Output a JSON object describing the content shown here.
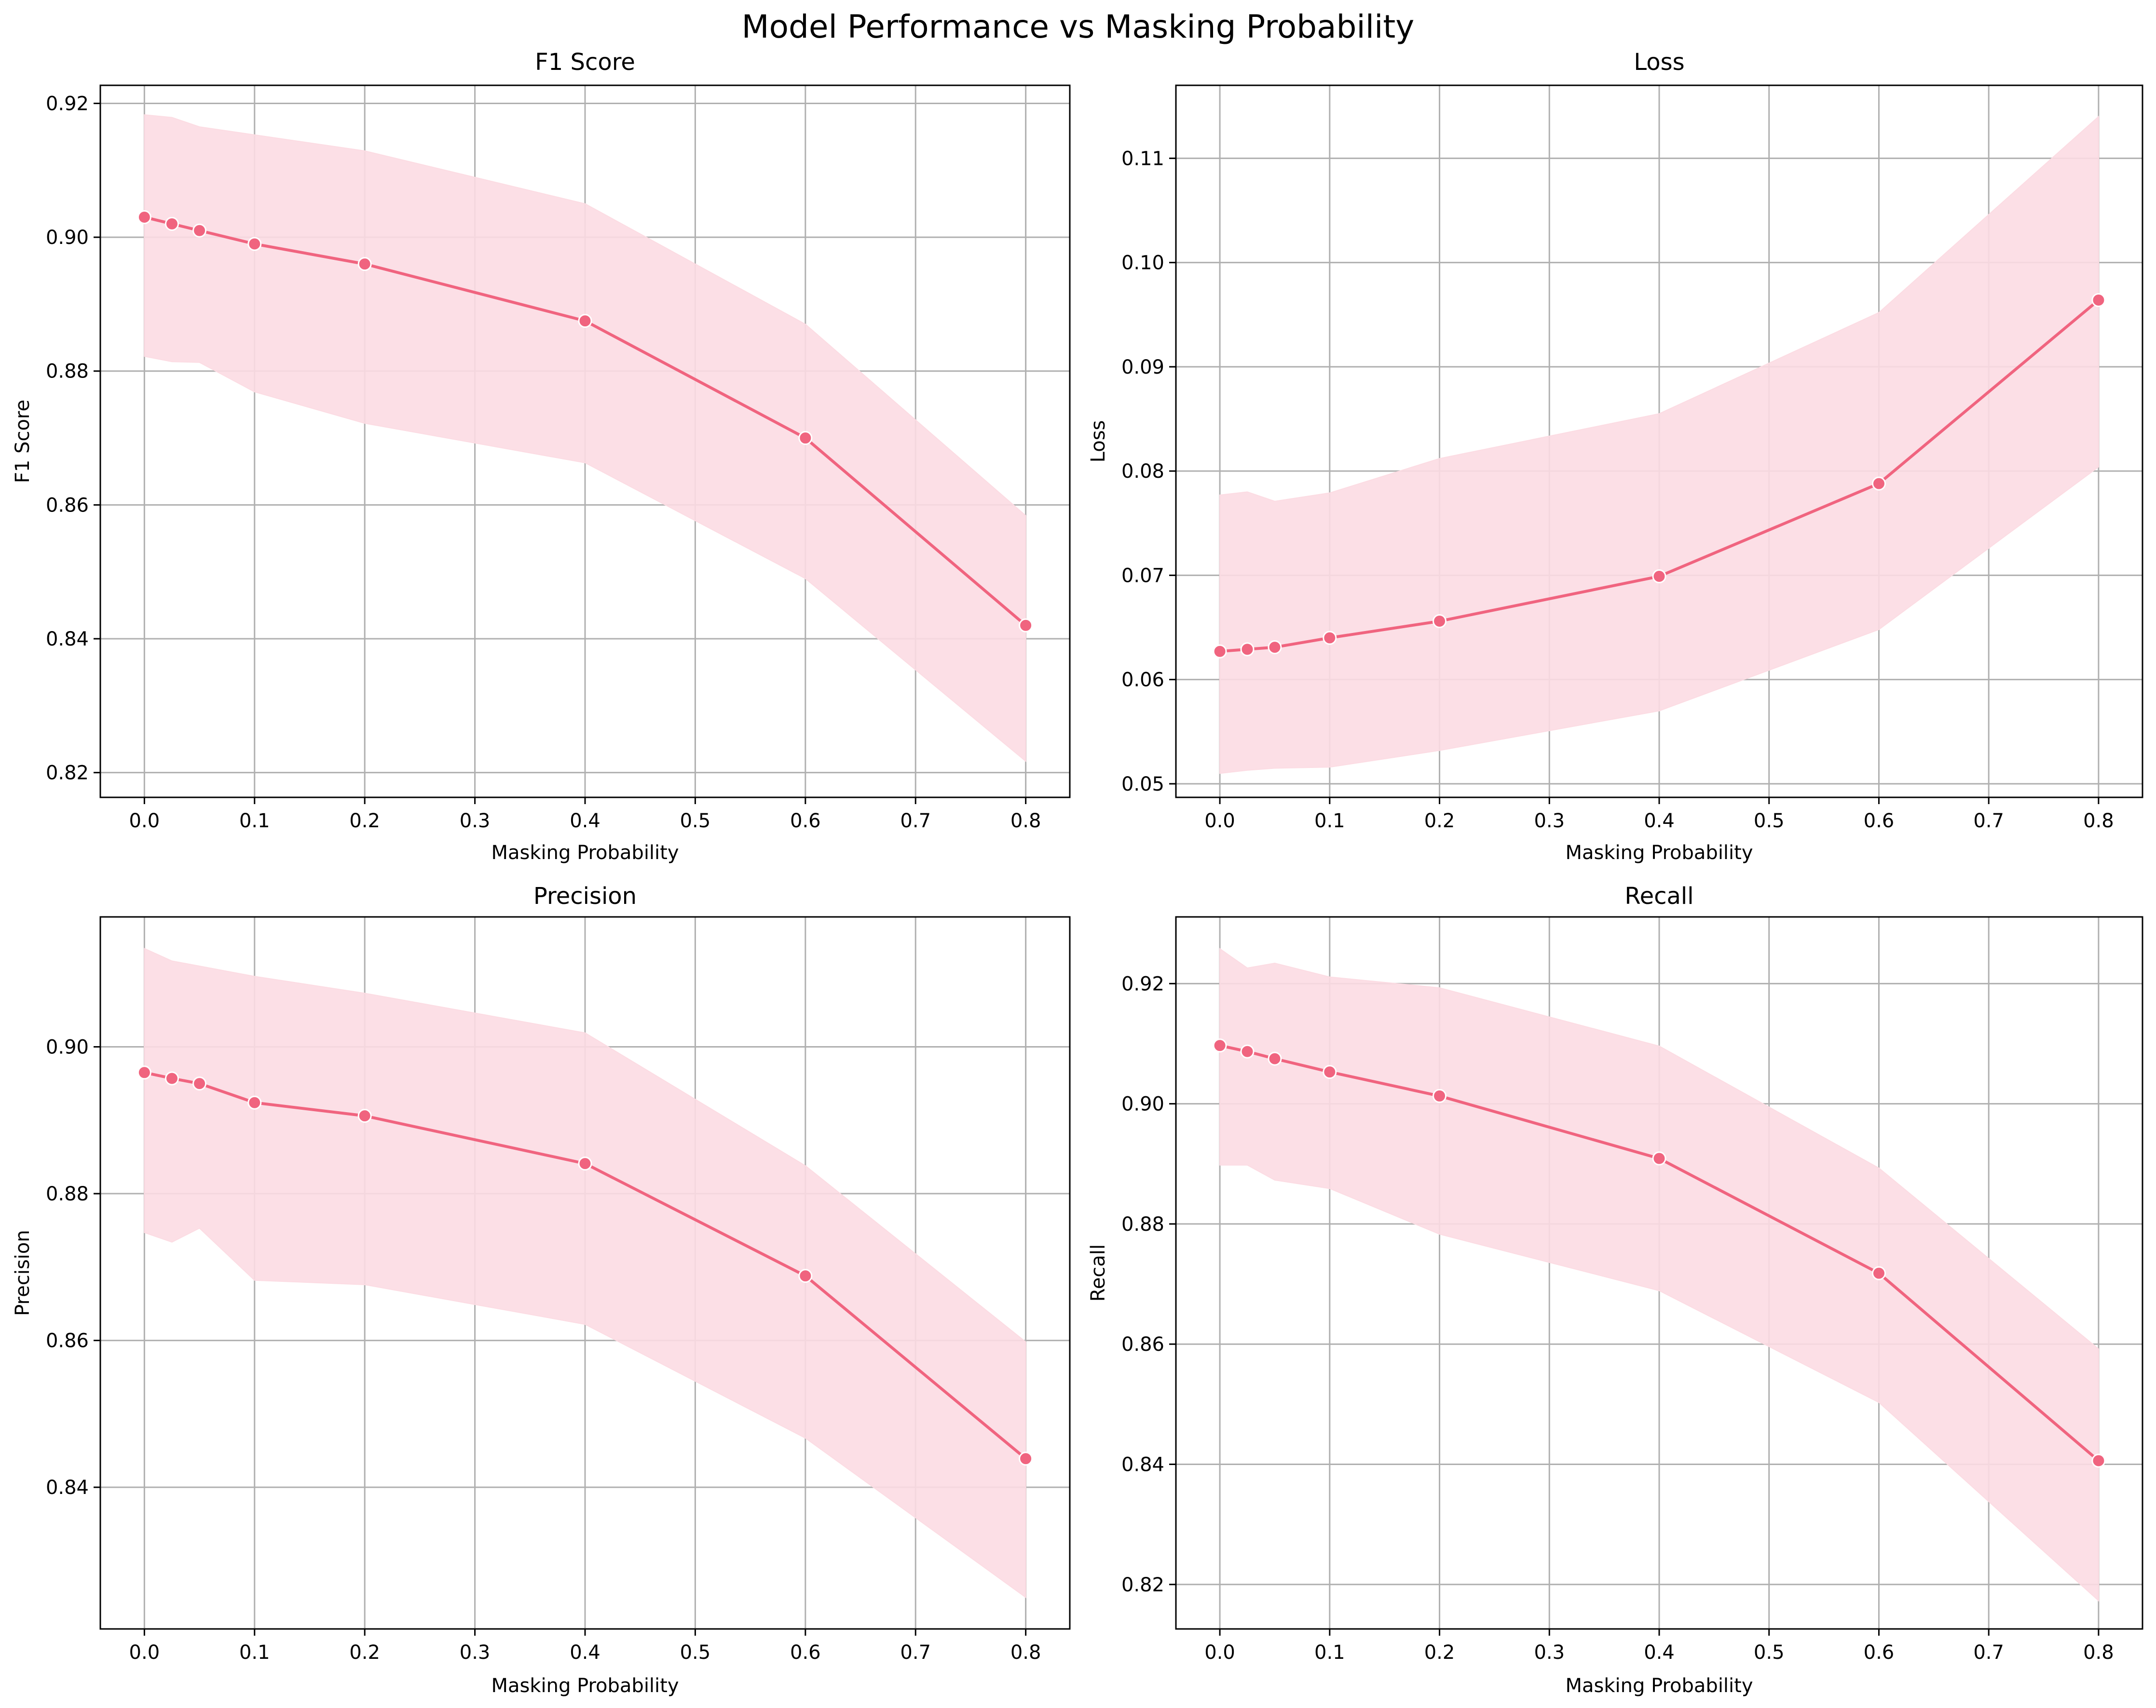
{
  "figure": {
    "title": "Model Performance vs Masking Probability",
    "line_color": "#f0647f",
    "band_color": "#fcdce3"
  },
  "chart_data": [
    {
      "type": "line",
      "title": "F1 Score",
      "xlabel": "Masking Probability",
      "ylabel": "F1 Score",
      "xlim": [
        -0.04,
        0.84
      ],
      "ylim": [
        0.8163,
        0.9227
      ],
      "grid": true,
      "xticks": [
        0.0,
        0.1,
        0.2,
        0.3,
        0.4,
        0.5,
        0.6,
        0.7,
        0.8
      ],
      "xtick_labels": [
        "0.0",
        "0.1",
        "0.2",
        "0.3",
        "0.4",
        "0.5",
        "0.6",
        "0.7",
        "0.8"
      ],
      "yticks": [
        0.82,
        0.84,
        0.86,
        0.88,
        0.9,
        0.92
      ],
      "ytick_labels": [
        "0.82",
        "0.84",
        "0.86",
        "0.88",
        "0.90",
        "0.92"
      ],
      "series": [
        {
          "x": [
            0.0,
            0.025,
            0.05,
            0.1,
            0.2,
            0.4,
            0.6,
            0.8
          ],
          "y": [
            0.903,
            0.902,
            0.901,
            0.899,
            0.896,
            0.8875,
            0.87,
            0.842
          ],
          "ci_upper": [
            0.9183,
            0.9179,
            0.9165,
            0.9153,
            0.9129,
            0.905,
            0.887,
            0.8584
          ],
          "ci_lower": [
            0.8822,
            0.8814,
            0.8813,
            0.8769,
            0.8722,
            0.8663,
            0.849,
            0.8217
          ]
        }
      ]
    },
    {
      "type": "line",
      "title": "Loss",
      "xlabel": "Masking Probability",
      "ylabel": "Loss",
      "xlim": [
        -0.04,
        0.84
      ],
      "ylim": [
        0.0487,
        0.117
      ],
      "grid": true,
      "xticks": [
        0.0,
        0.1,
        0.2,
        0.3,
        0.4,
        0.5,
        0.6,
        0.7,
        0.8
      ],
      "xtick_labels": [
        "0.0",
        "0.1",
        "0.2",
        "0.3",
        "0.4",
        "0.5",
        "0.6",
        "0.7",
        "0.8"
      ],
      "yticks": [
        0.05,
        0.06,
        0.07,
        0.08,
        0.09,
        0.1,
        0.11
      ],
      "ytick_labels": [
        "0.05",
        "0.06",
        "0.07",
        "0.08",
        "0.09",
        "0.10",
        "0.11"
      ],
      "series": [
        {
          "x": [
            0.0,
            0.025,
            0.05,
            0.1,
            0.2,
            0.4,
            0.6,
            0.8
          ],
          "y": [
            0.0627,
            0.0629,
            0.0631,
            0.064,
            0.0656,
            0.0699,
            0.0788,
            0.0964
          ],
          "ci_upper": [
            0.0777,
            0.078,
            0.0771,
            0.0779,
            0.0812,
            0.0855,
            0.0952,
            0.114
          ],
          "ci_lower": [
            0.051,
            0.0513,
            0.0515,
            0.0516,
            0.0532,
            0.057,
            0.0648,
            0.0804
          ]
        }
      ]
    },
    {
      "type": "line",
      "title": "Precision",
      "xlabel": "Masking Probability",
      "ylabel": "Precision",
      "xlim": [
        -0.04,
        0.84
      ],
      "ylim": [
        0.8207,
        0.9177
      ],
      "grid": true,
      "xticks": [
        0.0,
        0.1,
        0.2,
        0.3,
        0.4,
        0.5,
        0.6,
        0.7,
        0.8
      ],
      "xtick_labels": [
        "0.0",
        "0.1",
        "0.2",
        "0.3",
        "0.4",
        "0.5",
        "0.6",
        "0.7",
        "0.8"
      ],
      "yticks": [
        0.84,
        0.86,
        0.88,
        0.9
      ],
      "ytick_labels": [
        "0.84",
        "0.86",
        "0.88",
        "0.90"
      ],
      "series": [
        {
          "x": [
            0.0,
            0.025,
            0.05,
            0.1,
            0.2,
            0.4,
            0.6,
            0.8
          ],
          "y": [
            0.8965,
            0.8957,
            0.895,
            0.8924,
            0.8906,
            0.8841,
            0.8688,
            0.8439
          ],
          "ci_upper": [
            0.9134,
            0.9117,
            0.911,
            0.9096,
            0.9073,
            0.9019,
            0.8838,
            0.8598
          ],
          "ci_lower": [
            0.8747,
            0.8734,
            0.8753,
            0.8682,
            0.8676,
            0.8622,
            0.8467,
            0.825
          ]
        }
      ]
    },
    {
      "type": "line",
      "title": "Recall",
      "xlabel": "Masking Probability",
      "ylabel": "Recall",
      "xlim": [
        -0.04,
        0.84
      ],
      "ylim": [
        0.8126,
        0.9311
      ],
      "grid": true,
      "xticks": [
        0.0,
        0.1,
        0.2,
        0.3,
        0.4,
        0.5,
        0.6,
        0.7,
        0.8
      ],
      "xtick_labels": [
        "0.0",
        "0.1",
        "0.2",
        "0.3",
        "0.4",
        "0.5",
        "0.6",
        "0.7",
        "0.8"
      ],
      "yticks": [
        0.82,
        0.84,
        0.86,
        0.88,
        0.9,
        0.92
      ],
      "ytick_labels": [
        "0.82",
        "0.84",
        "0.86",
        "0.88",
        "0.90",
        "0.92"
      ],
      "series": [
        {
          "x": [
            0.0,
            0.025,
            0.05,
            0.1,
            0.2,
            0.4,
            0.6,
            0.8
          ],
          "y": [
            0.9097,
            0.9087,
            0.9075,
            0.9053,
            0.9013,
            0.8909,
            0.8718,
            0.8406
          ],
          "ci_upper": [
            0.9258,
            0.9226,
            0.9234,
            0.9211,
            0.9193,
            0.9096,
            0.8893,
            0.8592
          ],
          "ci_lower": [
            0.8898,
            0.8898,
            0.8873,
            0.8859,
            0.8783,
            0.8689,
            0.8503,
            0.8173
          ]
        }
      ]
    }
  ]
}
